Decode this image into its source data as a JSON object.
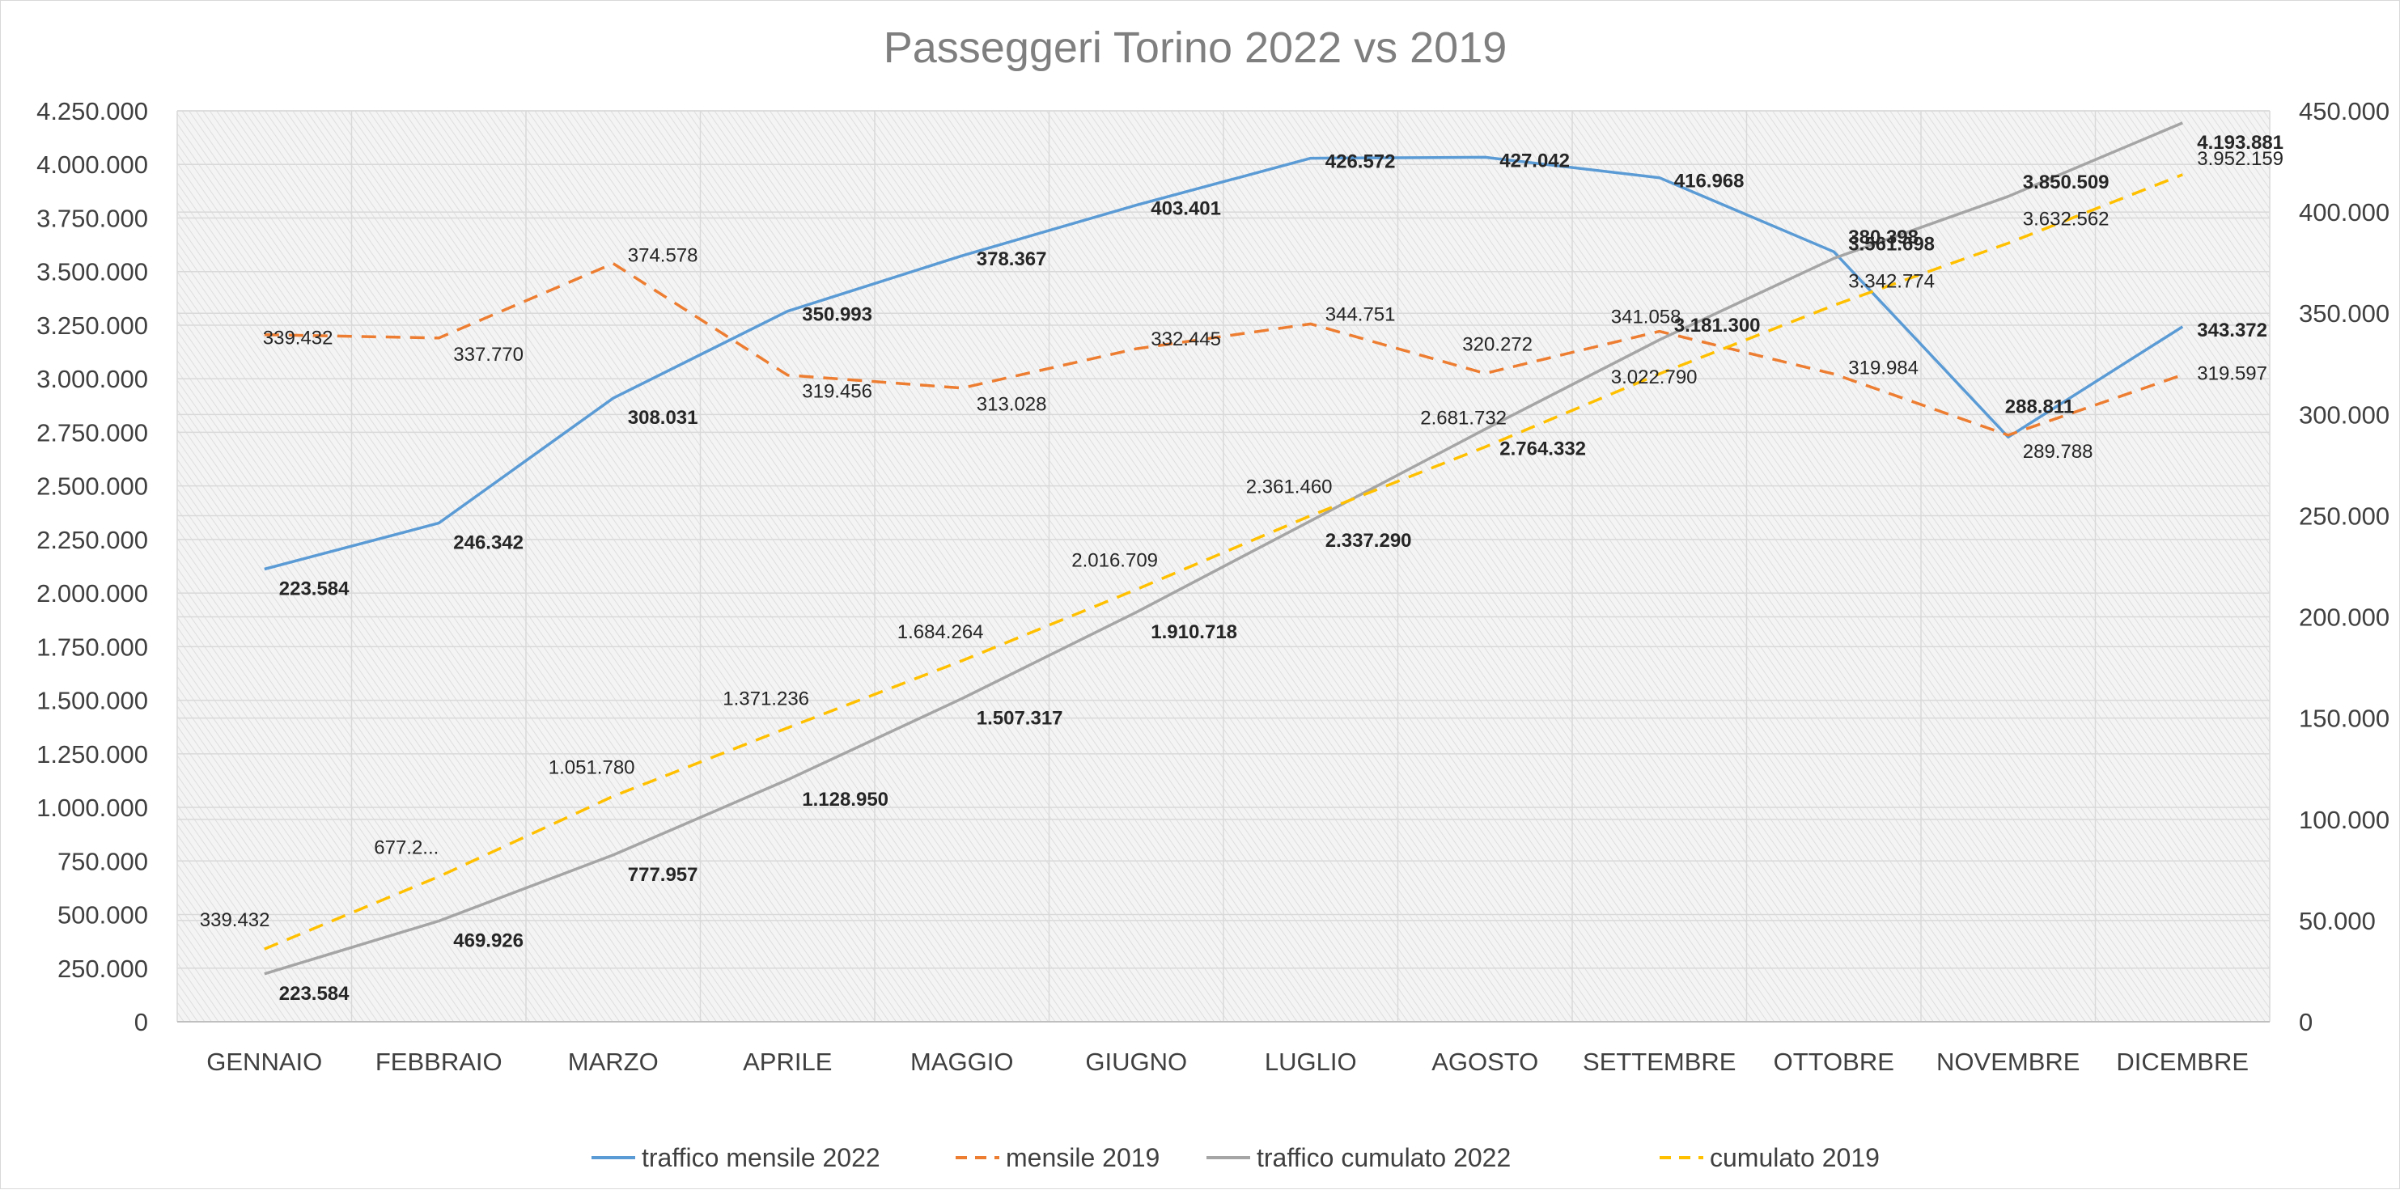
{
  "chart_data": {
    "type": "line",
    "title": "Passeggeri Torino 2022 vs 2019",
    "categories": [
      "GENNAIO",
      "FEBBRAIO",
      "MARZO",
      "APRILE",
      "MAGGIO",
      "GIUGNO",
      "LUGLIO",
      "AGOSTO",
      "SETTEMBRE",
      "OTTOBRE",
      "NOVEMBRE",
      "DICEMBRE"
    ],
    "left_axis": {
      "ylim": [
        0,
        4250000
      ],
      "ticks": [
        "0",
        "250.000",
        "500.000",
        "750.000",
        "1.000.000",
        "1.250.000",
        "1.500.000",
        "1.750.000",
        "2.000.000",
        "2.250.000",
        "2.500.000",
        "2.750.000",
        "3.000.000",
        "3.250.000",
        "3.500.000",
        "3.750.000",
        "4.000.000",
        "4.250.000"
      ]
    },
    "right_axis": {
      "ylim": [
        0,
        450000
      ],
      "ticks": [
        "0",
        "50.000",
        "100.000",
        "150.000",
        "200.000",
        "250.000",
        "300.000",
        "350.000",
        "400.000",
        "450.000"
      ]
    },
    "gridlines": true,
    "legend_position": "bottom",
    "series": [
      {
        "name": "traffico mensile 2022",
        "axis": "right",
        "color": "#5b9bd5",
        "dashed": false,
        "values": [
          223584,
          246342,
          308031,
          350993,
          378367,
          403401,
          426572,
          427042,
          416968,
          380398,
          288811,
          343372
        ],
        "labels": [
          "223.584",
          "246.342",
          "308.031",
          "350.993",
          "378.367",
          "403.401",
          "426.572",
          "427.042",
          "416.968",
          "380.398",
          "288.811",
          "343.372"
        ],
        "label_style": "bold"
      },
      {
        "name": "mensile 2019",
        "axis": "right",
        "color": "#ed7d31",
        "dashed": true,
        "values": [
          339432,
          337770,
          374578,
          319456,
          313028,
          332445,
          344751,
          320272,
          341058,
          319984,
          289788,
          319597
        ],
        "labels": [
          "339.432",
          "337.770",
          "374.578",
          "319.456",
          "313.028",
          "332.445",
          "344.751",
          "320.272",
          "341.058",
          "319.984",
          "289.788",
          "319.597"
        ],
        "label_style": "normal"
      },
      {
        "name": "traffico cumulato 2022",
        "axis": "left",
        "color": "#a5a5a5",
        "dashed": false,
        "values": [
          223584,
          469926,
          777957,
          1128950,
          1507317,
          1910718,
          2337290,
          2764332,
          3181300,
          3561698,
          3850509,
          4193881
        ],
        "labels": [
          "223.584",
          "469.926",
          "777.957",
          "1.128.950",
          "1.507.317",
          "1.910.718",
          "2.337.290",
          "2.764.332",
          "3.181.300",
          "3.561.698",
          "3.850.509",
          "4.193.881"
        ],
        "label_style": "bold"
      },
      {
        "name": "cumulato 2019",
        "axis": "left",
        "color": "#ffc000",
        "dashed": true,
        "values": [
          339432,
          677202,
          1051780,
          1371236,
          1684264,
          2016709,
          2361460,
          2681732,
          3022790,
          3342774,
          3632562,
          3952159
        ],
        "labels": [
          "339.432",
          "677.2...",
          "1.051.780",
          "1.371.236",
          "1.684.264",
          "2.016.709",
          "2.361.460",
          "2.681.732",
          "3.022.790",
          "3.342.774",
          "3.632.562",
          "3.952.159"
        ],
        "label_style": "normal"
      }
    ]
  }
}
